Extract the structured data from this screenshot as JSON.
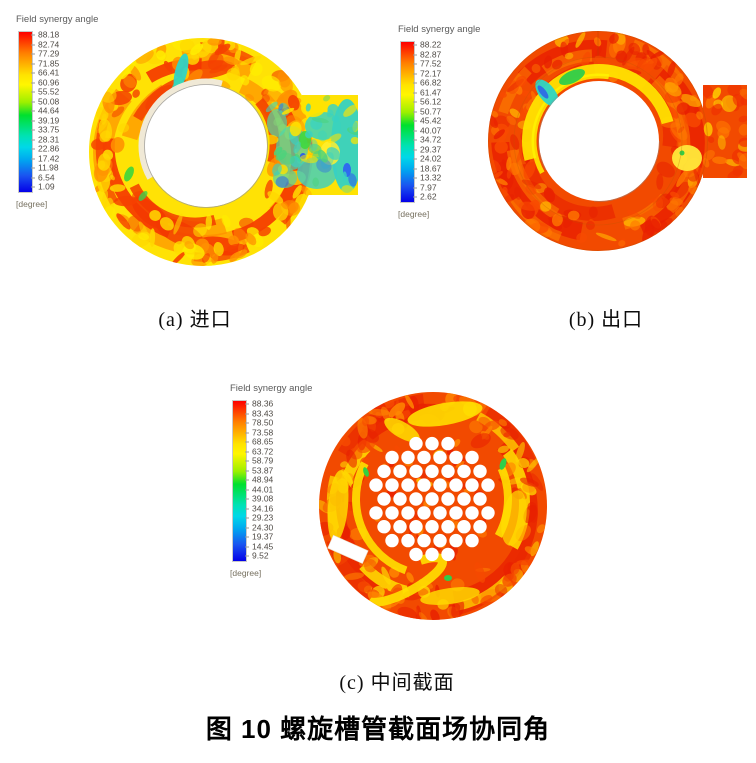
{
  "figure": {
    "caption": "图 10 螺旋槽管截面场协同角"
  },
  "panels": {
    "a": {
      "caption": "(a) 进口",
      "legend": {
        "title": "Field synergy angle",
        "unit": "[degree]",
        "ticks": [
          "88.18",
          "82.74",
          "77.29",
          "71.85",
          "66.41",
          "60.96",
          "55.52",
          "50.08",
          "44.64",
          "39.19",
          "33.75",
          "28.31",
          "22.86",
          "17.42",
          "11.98",
          "6.54",
          "1.09"
        ]
      }
    },
    "b": {
      "caption": "(b) 出口",
      "legend": {
        "title": "Field synergy angle",
        "unit": "[degree]",
        "ticks": [
          "88.22",
          "82.87",
          "77.52",
          "72.17",
          "66.82",
          "61.47",
          "56.12",
          "50.77",
          "45.42",
          "40.07",
          "34.72",
          "29.37",
          "24.02",
          "18.67",
          "13.32",
          "7.97",
          "2.62"
        ]
      }
    },
    "c": {
      "caption": "(c) 中间截面",
      "legend": {
        "title": "Field synergy angle",
        "unit": "[degree]",
        "ticks": [
          "88.36",
          "83.43",
          "78.50",
          "73.58",
          "68.65",
          "63.72",
          "58.79",
          "53.87",
          "48.94",
          "44.01",
          "39.08",
          "34.16",
          "29.23",
          "24.30",
          "19.37",
          "14.45",
          "9.52"
        ]
      }
    }
  },
  "colors": {
    "colormap_high_to_low": [
      "#ff0000",
      "#ff8000",
      "#ffee00",
      "#00e000",
      "#00e0e0",
      "#0000ff"
    ],
    "legend_text": "#4e4a45",
    "caption_text": "#000000"
  },
  "chart_data": [
    {
      "type": "heatmap",
      "title": "Field synergy angle",
      "subplot": "(a) 进口",
      "unit": "degree",
      "legend_levels": [
        88.18,
        82.74,
        77.29,
        71.85,
        66.41,
        60.96,
        55.52,
        50.08,
        44.64,
        39.19,
        33.75,
        28.31,
        22.86,
        17.42,
        11.98,
        6.54,
        1.09
      ],
      "range": [
        1.09,
        88.18
      ],
      "colormap": "rainbow (red=high, blue=low)",
      "geometry": "annular cross-section with rectangular inlet duct on right; mostly yellow (~55-75°) with red swirl bands (~85°), cyan/green low-angle region (~20-45°) near duct junction and inside duct"
    },
    {
      "type": "heatmap",
      "title": "Field synergy angle",
      "subplot": "(b) 出口",
      "unit": "degree",
      "legend_levels": [
        88.22,
        82.87,
        77.52,
        72.17,
        66.82,
        61.47,
        56.12,
        50.77,
        45.42,
        40.07,
        34.72,
        29.37,
        24.02,
        18.67,
        13.32,
        7.97,
        2.62
      ],
      "range": [
        2.62,
        88.22
      ],
      "colormap": "rainbow (red=high, blue=low)",
      "geometry": "annular cross-section with rectangular outlet duct on right; mostly red/orange (~80-88°), yellow band hugging top of inner bore, cyan/green/blue low-angle patch at upper-left of bore"
    },
    {
      "type": "heatmap",
      "title": "Field synergy angle",
      "subplot": "(c) 中间截面",
      "unit": "degree",
      "legend_levels": [
        88.36,
        83.43,
        78.5,
        73.58,
        68.65,
        63.72,
        58.79,
        53.87,
        48.94,
        44.01,
        39.08,
        34.16,
        29.23,
        24.3,
        19.37,
        14.45,
        9.52
      ],
      "range": [
        9.52,
        88.36
      ],
      "colormap": "rainbow (red=high, blue=low)",
      "geometry": "full circular cross-section, mostly red/orange with yellow spiral streaks; central bundle of ~50 white tube holes; small white slot at lower-left"
    }
  ]
}
